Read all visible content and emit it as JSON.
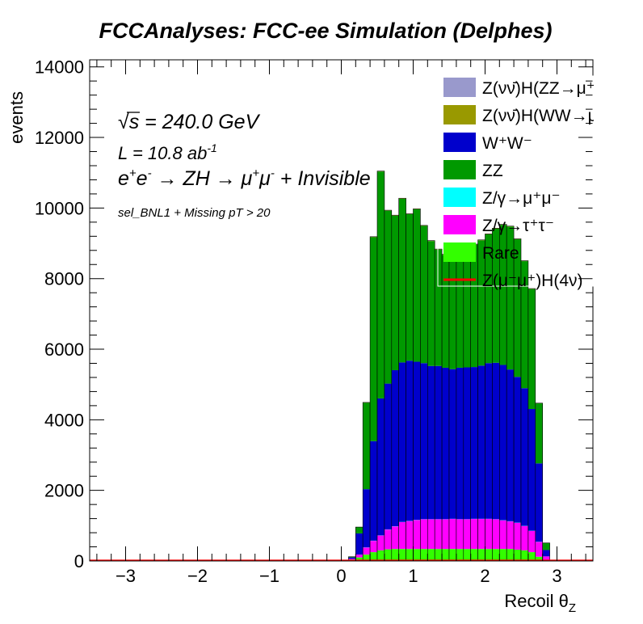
{
  "chart_data": {
    "type": "bar",
    "title": "FCCAnalyses: FCC-ee Simulation (Delphes)",
    "xlabel": "Recoil θ",
    "xlabel_sub": "Z",
    "ylabel": "events",
    "xlim": [
      -3.5,
      3.5
    ],
    "ylim": [
      0,
      14200
    ],
    "x_ticks": [
      "−3",
      "−2",
      "−1",
      "0",
      "1",
      "2",
      "3"
    ],
    "y_ticks": [
      "0",
      "2000",
      "4000",
      "6000",
      "8000",
      "10000",
      "12000",
      "14000"
    ],
    "grid": false,
    "stacked": true,
    "annotations": {
      "sqrt_symbol": "√",
      "sqrt_s": "s",
      "energy": " = 240.0 GeV",
      "lumi": "L = 10.8 ab",
      "lumi_exp": "-1",
      "process_a": "e",
      "process_a_sup": "+",
      "process_b": "e",
      "process_b_sup": "-",
      "process_c": " → ZH → μ",
      "process_c_sup": "+",
      "process_d": "μ",
      "process_d_sup": "-",
      "process_e": " + Invisible",
      "selection": "sel_BNL1 + Missing pT > 20"
    },
    "legend_position": "top-right",
    "legend": [
      {
        "label": "Z(νν̄)H(ZZ→μ⁺μ⁻ν⁺ν⁻)",
        "color": "#9999cc",
        "kind": "box"
      },
      {
        "label": "Z(νν̄)H(WW→μ⁺νμ⁻ν)",
        "color": "#999900",
        "kind": "box"
      },
      {
        "label": "W⁺W⁻",
        "color": "#0000cc",
        "kind": "box"
      },
      {
        "label": "ZZ",
        "color": "#009900",
        "kind": "box"
      },
      {
        "label": "Z/γ→μ⁺μ⁻",
        "color": "#00ffff",
        "kind": "box"
      },
      {
        "label": "Z/γ→τ⁺τ⁻",
        "color": "#ff00ff",
        "kind": "box"
      },
      {
        "label": "Rare",
        "color": "#33ff00",
        "kind": "box"
      },
      {
        "label": "Z(μ⁻μ⁺)H(4ν)",
        "color": "#ff0000",
        "kind": "line"
      }
    ],
    "x_bins": [
      0.1,
      0.2,
      0.3,
      0.4,
      0.5,
      0.6,
      0.7,
      0.8,
      0.9,
      1.0,
      1.1,
      1.2,
      1.3,
      1.4,
      1.5,
      1.6,
      1.7,
      1.8,
      1.9,
      2.0,
      2.1,
      2.2,
      2.3,
      2.4,
      2.5,
      2.6,
      2.7,
      2.8,
      2.9,
      3.0
    ],
    "series": [
      {
        "name": "Rare",
        "color": "#33ff00",
        "values": [
          40,
          100,
          180,
          250,
          300,
          330,
          340,
          340,
          340,
          340,
          340,
          340,
          340,
          340,
          340,
          340,
          340,
          340,
          340,
          340,
          340,
          340,
          340,
          320,
          300,
          250,
          120,
          30,
          0,
          0
        ]
      },
      {
        "name": "Z/γ→τ⁺τ⁻",
        "color": "#ff00ff",
        "values": [
          20,
          80,
          200,
          320,
          420,
          560,
          640,
          760,
          790,
          820,
          840,
          840,
          840,
          840,
          850,
          840,
          840,
          850,
          850,
          850,
          840,
          810,
          780,
          760,
          690,
          600,
          420,
          100,
          0,
          0
        ]
      },
      {
        "name": "Z/γ→μ⁺μ⁻",
        "color": "#00ffff",
        "values": [
          0,
          0,
          5,
          5,
          5,
          5,
          5,
          5,
          5,
          5,
          5,
          5,
          5,
          5,
          5,
          5,
          5,
          5,
          5,
          5,
          5,
          5,
          5,
          5,
          5,
          5,
          5,
          0,
          0,
          0
        ]
      },
      {
        "name": "W⁺W⁻",
        "color": "#0000cc",
        "values": [
          40,
          600,
          1650,
          2820,
          3880,
          4130,
          4420,
          4520,
          4540,
          4480,
          4420,
          4340,
          4340,
          4290,
          4240,
          4290,
          4300,
          4300,
          4340,
          4410,
          4430,
          4400,
          4300,
          4130,
          3900,
          3450,
          2220,
          180,
          0,
          0
        ]
      },
      {
        "name": "ZZ",
        "color": "#009900",
        "values": [
          20,
          180,
          2450,
          5780,
          6430,
          4900,
          4380,
          4640,
          4150,
          4320,
          3890,
          3540,
          3300,
          3200,
          3340,
          3270,
          3400,
          3470,
          3550,
          3650,
          3800,
          3970,
          4050,
          3900,
          3600,
          3400,
          1700,
          200,
          0,
          0
        ]
      },
      {
        "name": "Z(νν̄)H(WW→μ⁺νμ⁻ν)",
        "color": "#999900",
        "values": [
          0,
          0,
          5,
          10,
          10,
          10,
          10,
          10,
          10,
          10,
          10,
          10,
          10,
          10,
          10,
          10,
          10,
          10,
          10,
          10,
          10,
          10,
          10,
          10,
          10,
          10,
          5,
          0,
          0,
          0
        ]
      },
      {
        "name": "Z(νν̄)H(ZZ→μ⁺μ⁻ν⁺ν⁻)",
        "color": "#9999cc",
        "values": [
          0,
          0,
          2,
          3,
          3,
          3,
          3,
          3,
          3,
          3,
          3,
          3,
          3,
          3,
          3,
          3,
          3,
          3,
          3,
          3,
          3,
          3,
          3,
          3,
          3,
          3,
          2,
          0,
          0,
          0
        ]
      }
    ],
    "signal": {
      "name": "Z(μ⁻μ⁺)H(4ν)",
      "color": "#ff0000",
      "value_outside_peak": 15
    }
  }
}
